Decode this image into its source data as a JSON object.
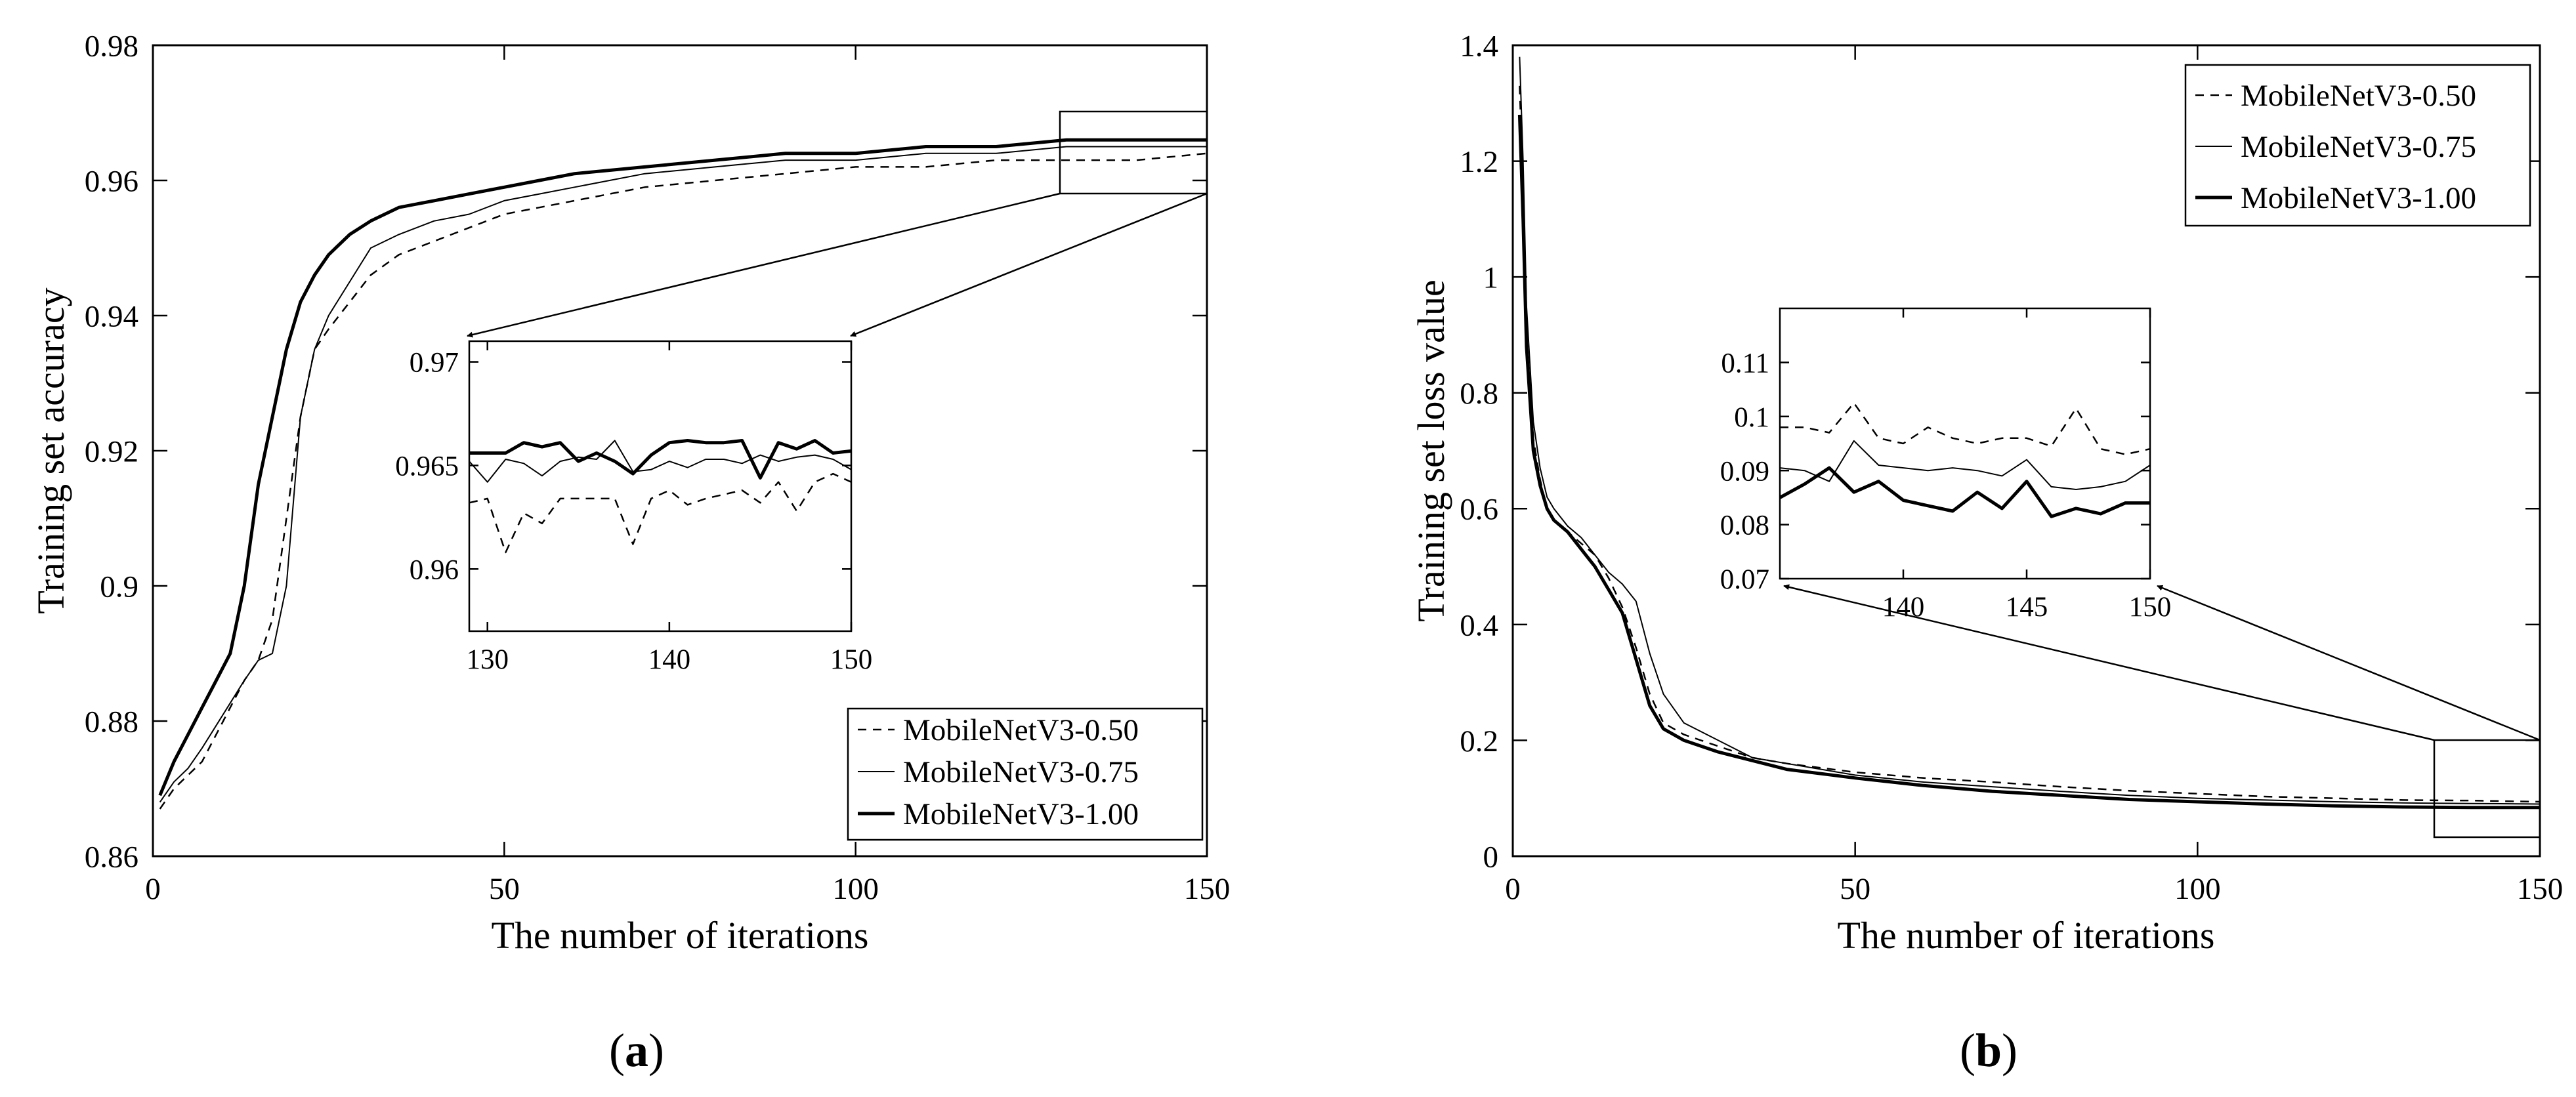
{
  "panels": [
    {
      "label": "(a)",
      "label_letter": "a",
      "chart_data": {
        "type": "line",
        "title": "",
        "xlabel": "The number of iterations",
        "ylabel": "Training set accuracy",
        "xlim": [
          0,
          150
        ],
        "ylim": [
          0.86,
          0.98
        ],
        "xticks": [
          0,
          50,
          100,
          150
        ],
        "xtick_labels": [
          "0",
          "50",
          "100",
          "150"
        ],
        "yticks": [
          0.86,
          0.88,
          0.9,
          0.92,
          0.94,
          0.96,
          0.98
        ],
        "ytick_labels": [
          "0.86",
          "0.88",
          "0.9",
          "0.92",
          "0.94",
          "0.96",
          "0.98"
        ],
        "legend_position": "bottom-right",
        "series": [
          {
            "name": "MobileNetV3-0.50",
            "style": "dashed",
            "x": [
              1,
              3,
              5,
              7,
              10,
              13,
              15,
              17,
              19,
              21,
              23,
              25,
              28,
              31,
              35,
              40,
              45,
              50,
              55,
              60,
              70,
              80,
              90,
              100,
              110,
              120,
              130,
              140,
              150
            ],
            "y": [
              0.867,
              0.87,
              0.872,
              0.874,
              0.88,
              0.886,
              0.889,
              0.895,
              0.91,
              0.925,
              0.935,
              0.938,
              0.942,
              0.946,
              0.949,
              0.951,
              0.953,
              0.955,
              0.956,
              0.957,
              0.959,
              0.96,
              0.961,
              0.962,
              0.962,
              0.963,
              0.963,
              0.963,
              0.964
            ]
          },
          {
            "name": "MobileNetV3-0.75",
            "style": "thin-solid",
            "x": [
              1,
              3,
              5,
              7,
              10,
              13,
              15,
              17,
              19,
              21,
              23,
              25,
              28,
              31,
              35,
              40,
              45,
              50,
              55,
              60,
              70,
              80,
              90,
              100,
              110,
              120,
              130,
              140,
              150
            ],
            "y": [
              0.868,
              0.871,
              0.873,
              0.876,
              0.881,
              0.886,
              0.889,
              0.89,
              0.9,
              0.925,
              0.935,
              0.94,
              0.945,
              0.95,
              0.952,
              0.954,
              0.955,
              0.957,
              0.958,
              0.959,
              0.961,
              0.962,
              0.963,
              0.963,
              0.964,
              0.964,
              0.965,
              0.965,
              0.965
            ]
          },
          {
            "name": "MobileNetV3-1.00",
            "style": "thick-solid",
            "x": [
              1,
              3,
              5,
              7,
              9,
              11,
              13,
              15,
              17,
              19,
              21,
              23,
              25,
              28,
              31,
              35,
              40,
              45,
              50,
              55,
              60,
              70,
              80,
              90,
              100,
              110,
              120,
              130,
              140,
              150
            ],
            "y": [
              0.869,
              0.874,
              0.878,
              0.882,
              0.886,
              0.89,
              0.9,
              0.915,
              0.925,
              0.935,
              0.942,
              0.946,
              0.949,
              0.952,
              0.954,
              0.956,
              0.957,
              0.958,
              0.959,
              0.96,
              0.961,
              0.962,
              0.963,
              0.964,
              0.964,
              0.965,
              0.965,
              0.966,
              0.966,
              0.966
            ]
          }
        ],
        "inset": {
          "xlim": [
            129,
            150
          ],
          "ylim": [
            0.957,
            0.971
          ],
          "xticks": [
            130,
            140,
            150
          ],
          "xtick_labels": [
            "130",
            "140",
            "150"
          ],
          "yticks": [
            0.96,
            0.965,
            0.97
          ],
          "ytick_labels": [
            "0.96",
            "0.965",
            "0.97"
          ],
          "zoom_box": {
            "xlim": [
              129,
              150
            ],
            "ylim": [
              0.9585,
              0.9705
            ]
          },
          "series": [
            {
              "name": "MobileNetV3-0.50",
              "style": "dashed",
              "x": [
                129,
                130,
                131,
                132,
                133,
                134,
                135,
                136,
                137,
                138,
                139,
                140,
                141,
                142,
                143,
                144,
                145,
                146,
                147,
                148,
                149,
                150
              ],
              "y": [
                0.9632,
                0.9634,
                0.9608,
                0.9627,
                0.9622,
                0.9634,
                0.9634,
                0.9634,
                0.9634,
                0.9612,
                0.9634,
                0.9638,
                0.9631,
                0.9634,
                0.9636,
                0.9638,
                0.9632,
                0.9642,
                0.9628,
                0.9642,
                0.9646,
                0.9642
              ]
            },
            {
              "name": "MobileNetV3-0.75",
              "style": "thin-solid",
              "x": [
                129,
                130,
                131,
                132,
                133,
                134,
                135,
                136,
                137,
                138,
                139,
                140,
                141,
                142,
                143,
                144,
                145,
                146,
                147,
                148,
                149,
                150
              ],
              "y": [
                0.9652,
                0.9642,
                0.9653,
                0.9651,
                0.9645,
                0.9652,
                0.9654,
                0.9653,
                0.9662,
                0.9647,
                0.9648,
                0.9652,
                0.9649,
                0.9653,
                0.9653,
                0.9651,
                0.9655,
                0.9652,
                0.9654,
                0.9655,
                0.9653,
                0.9648
              ]
            },
            {
              "name": "MobileNetV3-1.00",
              "style": "thick-solid",
              "x": [
                129,
                130,
                131,
                132,
                133,
                134,
                135,
                136,
                137,
                138,
                139,
                140,
                141,
                142,
                143,
                144,
                145,
                146,
                147,
                148,
                149,
                150
              ],
              "y": [
                0.9656,
                0.9656,
                0.9656,
                0.9661,
                0.9659,
                0.9661,
                0.9652,
                0.9656,
                0.9652,
                0.9646,
                0.9655,
                0.9661,
                0.9662,
                0.9661,
                0.9661,
                0.9662,
                0.9644,
                0.9661,
                0.9658,
                0.9662,
                0.9656,
                0.9657
              ]
            }
          ]
        }
      }
    },
    {
      "label": "(b)",
      "label_letter": "b",
      "chart_data": {
        "type": "line",
        "title": "",
        "xlabel": "The number of iterations",
        "ylabel": "Training set loss value",
        "xlim": [
          0,
          150
        ],
        "ylim": [
          0,
          1.4
        ],
        "xticks": [
          0,
          50,
          100,
          150
        ],
        "xtick_labels": [
          "0",
          "50",
          "100",
          "150"
        ],
        "yticks": [
          0,
          0.2,
          0.4,
          0.6,
          0.8,
          1,
          1.2,
          1.4
        ],
        "ytick_labels": [
          "0",
          "0.2",
          "0.4",
          "0.6",
          "0.8",
          "1",
          "1.2",
          "1.4"
        ],
        "legend_position": "top-right",
        "series": [
          {
            "name": "MobileNetV3-0.50",
            "style": "dashed",
            "x": [
              1,
              1.5,
              2,
              3,
              4,
              5,
              6,
              8,
              10,
              12,
              14,
              16,
              18,
              20,
              22,
              25,
              30,
              35,
              40,
              50,
              60,
              70,
              80,
              90,
              100,
              110,
              120,
              130,
              140,
              150
            ],
            "y": [
              1.33,
              1.15,
              0.9,
              0.72,
              0.65,
              0.6,
              0.58,
              0.56,
              0.54,
              0.52,
              0.48,
              0.43,
              0.36,
              0.28,
              0.23,
              0.21,
              0.19,
              0.17,
              0.16,
              0.145,
              0.135,
              0.128,
              0.12,
              0.113,
              0.108,
              0.103,
              0.1,
              0.097,
              0.096,
              0.094
            ]
          },
          {
            "name": "MobileNetV3-0.75",
            "style": "thin-solid",
            "x": [
              1,
              1.5,
              2,
              3,
              4,
              5,
              6,
              8,
              10,
              12,
              14,
              16,
              18,
              20,
              22,
              25,
              30,
              35,
              40,
              50,
              60,
              70,
              80,
              90,
              100,
              110,
              120,
              130,
              140,
              150
            ],
            "y": [
              1.38,
              1.2,
              0.95,
              0.75,
              0.67,
              0.62,
              0.6,
              0.57,
              0.55,
              0.52,
              0.49,
              0.47,
              0.44,
              0.35,
              0.28,
              0.23,
              0.2,
              0.17,
              0.16,
              0.14,
              0.128,
              0.12,
              0.112,
              0.105,
              0.1,
              0.097,
              0.094,
              0.092,
              0.091,
              0.09
            ]
          },
          {
            "name": "MobileNetV3-1.00",
            "style": "thick-solid",
            "x": [
              1,
              1.5,
              2,
              3,
              4,
              5,
              6,
              8,
              10,
              12,
              14,
              16,
              18,
              20,
              22,
              25,
              30,
              35,
              40,
              50,
              60,
              70,
              80,
              90,
              100,
              110,
              120,
              130,
              140,
              150
            ],
            "y": [
              1.28,
              1.1,
              0.88,
              0.7,
              0.64,
              0.6,
              0.58,
              0.56,
              0.53,
              0.5,
              0.46,
              0.42,
              0.34,
              0.26,
              0.22,
              0.2,
              0.18,
              0.165,
              0.15,
              0.135,
              0.122,
              0.112,
              0.105,
              0.098,
              0.094,
              0.09,
              0.087,
              0.085,
              0.084,
              0.084
            ]
          }
        ],
        "inset": {
          "xlim": [
            135,
            150
          ],
          "ylim": [
            0.07,
            0.12
          ],
          "xticks": [
            140,
            145,
            150
          ],
          "xtick_labels": [
            "140",
            "145",
            "150"
          ],
          "yticks": [
            0.07,
            0.08,
            0.09,
            0.1,
            0.11
          ],
          "ytick_labels": [
            "0.07",
            "0.08",
            "0.09",
            "0.1",
            "0.11"
          ],
          "zoom_box": {
            "xlim": [
              134.5,
              150
            ],
            "ylim": [
              0.03,
              0.165
            ]
          },
          "series": [
            {
              "name": "MobileNetV3-0.50",
              "style": "dashed",
              "x": [
                135,
                136,
                137,
                138,
                139,
                140,
                141,
                142,
                143,
                144,
                145,
                146,
                147,
                148,
                149,
                150
              ],
              "y": [
                0.098,
                0.098,
                0.097,
                0.1025,
                0.096,
                0.095,
                0.098,
                0.096,
                0.095,
                0.096,
                0.096,
                0.0945,
                0.1015,
                0.094,
                0.093,
                0.094
              ]
            },
            {
              "name": "MobileNetV3-0.75",
              "style": "thin-solid",
              "x": [
                135,
                136,
                137,
                138,
                139,
                140,
                141,
                142,
                143,
                144,
                145,
                146,
                147,
                148,
                149,
                150
              ],
              "y": [
                0.0905,
                0.09,
                0.088,
                0.0955,
                0.091,
                0.0905,
                0.09,
                0.0905,
                0.09,
                0.089,
                0.092,
                0.087,
                0.0865,
                0.087,
                0.088,
                0.091
              ]
            },
            {
              "name": "MobileNetV3-1.00",
              "style": "thick-solid",
              "x": [
                135,
                136,
                137,
                138,
                139,
                140,
                141,
                142,
                143,
                144,
                145,
                146,
                147,
                148,
                149,
                150
              ],
              "y": [
                0.085,
                0.0875,
                0.0905,
                0.086,
                0.088,
                0.0845,
                0.0835,
                0.0825,
                0.086,
                0.083,
                0.088,
                0.0815,
                0.083,
                0.082,
                0.084,
                0.084
              ]
            }
          ]
        }
      }
    }
  ]
}
